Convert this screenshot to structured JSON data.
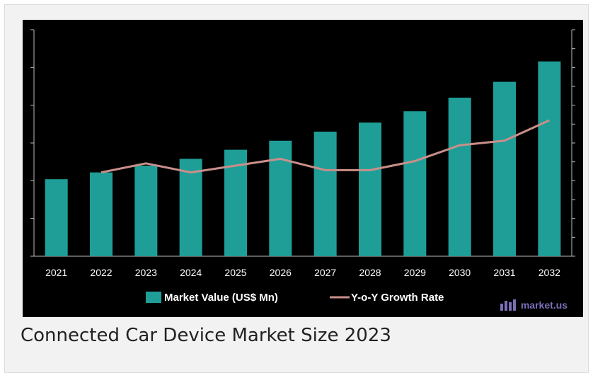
{
  "caption": "Connected Car Device Market Size 2023",
  "watermark": {
    "text": "market.us",
    "icon": "market-us-logo-icon"
  },
  "colors": {
    "bar": "#1f9e98",
    "line": "#c98f8a",
    "background": "#000000",
    "text": "#ffffff"
  },
  "chart_data": {
    "type": "bar",
    "title": "",
    "xlabel": "",
    "ylabel": "",
    "categories": [
      "2021",
      "2022",
      "2023",
      "2024",
      "2025",
      "2026",
      "2027",
      "2028",
      "2029",
      "2030",
      "2031",
      "2032"
    ],
    "ylim": [
      0,
      100
    ],
    "grid": false,
    "legend_position": "bottom",
    "series": [
      {
        "name": "Market Value (US$ Mn)",
        "type": "bar",
        "axis": "left",
        "values": [
          34,
          37,
          40,
          43,
          47,
          51,
          55,
          59,
          64,
          70,
          77,
          86
        ]
      },
      {
        "name": "Y-o-Y Growth Rate",
        "type": "line",
        "axis": "right",
        "values": [
          null,
          37,
          41,
          37,
          40,
          43,
          38,
          38,
          42,
          49,
          51,
          60
        ]
      }
    ]
  }
}
